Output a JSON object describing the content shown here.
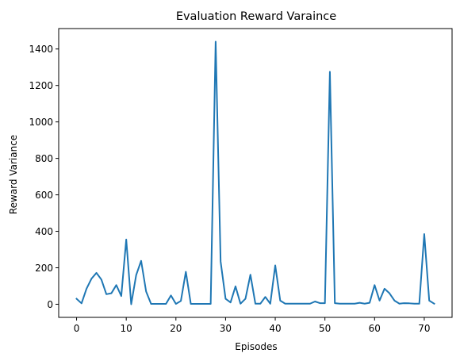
{
  "chart_data": {
    "type": "line",
    "title": "Evaluation Reward Varaince",
    "xlabel": "Episodes",
    "ylabel": "Reward Variance",
    "xlim": [
      -3.6,
      75.6
    ],
    "ylim": [
      -72,
      1512
    ],
    "xticks": [
      0,
      10,
      20,
      30,
      40,
      50,
      60,
      70
    ],
    "yticks": [
      0,
      200,
      400,
      600,
      800,
      1000,
      1200,
      1400
    ],
    "grid": false,
    "series": [
      {
        "color": "#1f77b4",
        "x": [
          0,
          1,
          2,
          3,
          4,
          5,
          6,
          7,
          8,
          9,
          10,
          11,
          12,
          13,
          14,
          15,
          16,
          17,
          18,
          19,
          20,
          21,
          22,
          23,
          24,
          25,
          26,
          27,
          28,
          29,
          30,
          31,
          32,
          33,
          34,
          35,
          36,
          37,
          38,
          39,
          40,
          41,
          42,
          43,
          44,
          45,
          46,
          47,
          48,
          49,
          50,
          51,
          52,
          53,
          54,
          55,
          56,
          57,
          58,
          59,
          60,
          61,
          62,
          63,
          64,
          65,
          66,
          67,
          68,
          69,
          70,
          71,
          72
        ],
        "y": [
          30,
          5,
          85,
          140,
          172,
          135,
          55,
          60,
          105,
          45,
          355,
          0,
          160,
          238,
          70,
          2,
          2,
          2,
          2,
          48,
          2,
          18,
          178,
          2,
          2,
          2,
          2,
          2,
          1440,
          235,
          30,
          10,
          98,
          3,
          30,
          162,
          3,
          3,
          40,
          3,
          213,
          20,
          3,
          3,
          3,
          3,
          3,
          3,
          15,
          6,
          6,
          1275,
          6,
          3,
          3,
          3,
          3,
          8,
          3,
          8,
          105,
          20,
          85,
          60,
          20,
          3,
          6,
          5,
          3,
          3,
          385,
          20,
          3
        ]
      }
    ]
  }
}
